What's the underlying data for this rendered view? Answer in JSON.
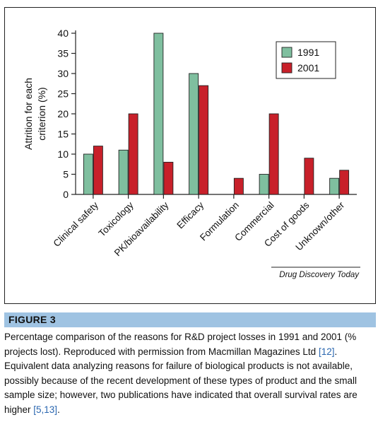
{
  "chart_data": {
    "type": "bar",
    "ylabel": "Attrition for each criterion (%)",
    "ylabel_lines": [
      "Attrition for each",
      "criterion (%)"
    ],
    "ylim": [
      0,
      40
    ],
    "yticks": [
      0,
      5,
      10,
      15,
      20,
      25,
      30,
      35,
      40
    ],
    "categories": [
      "Clinical safety",
      "Toxicology",
      "PK/bioavailability",
      "Efficacy",
      "Formulation",
      "Commercial",
      "Cost of goods",
      "Unknown/other"
    ],
    "series": [
      {
        "name": "1991",
        "color": "#7fbf9f",
        "values": [
          10,
          11,
          40,
          30,
          0,
          5,
          0,
          4
        ]
      },
      {
        "name": "2001",
        "color": "#c8202a",
        "values": [
          12,
          20,
          8,
          27,
          4,
          20,
          9,
          6
        ]
      }
    ],
    "legend_position": "top-right",
    "grid": false
  },
  "source_label": "Drug Discovery Today",
  "caption": {
    "heading": "FIGURE 3",
    "text_before_ref1": "Percentage comparison of the reasons for R&D project losses in 1991 and 2001 (% projects lost). Reproduced with permission from Macmillan Magazines Ltd ",
    "ref1": "[12]",
    "text_between": ". Equivalent data analyzing reasons for failure of biological products is not available, possibly because of the recent development of these types of product and the small sample size; however, two publications have indicated that overall survival rates are higher ",
    "ref2": "[5,13]",
    "text_after": "."
  }
}
